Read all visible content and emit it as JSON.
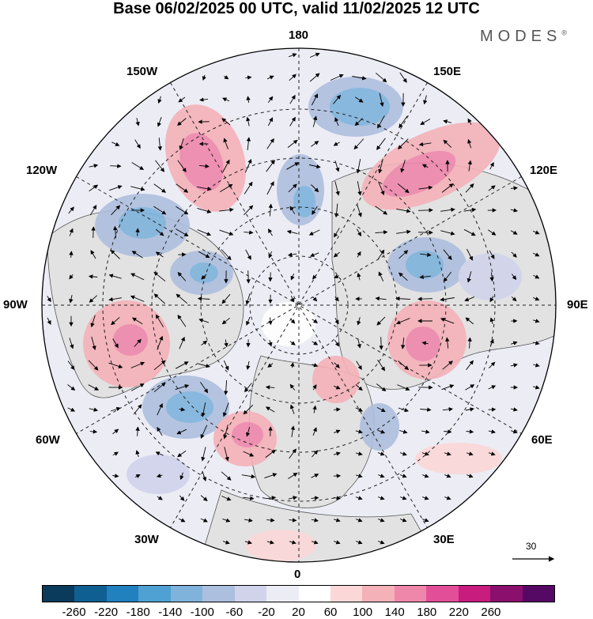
{
  "title": "Base 06/02/2025 00 UTC, valid 11/02/2025 12 UTC",
  "brand": "MODES",
  "brand_mark": "®",
  "longitude_labels": [
    "180",
    "150E",
    "120E",
    "90E",
    "60E",
    "30E",
    "0",
    "30W",
    "60W",
    "90W",
    "120W",
    "150W"
  ],
  "wind_reference": "30",
  "colorbar": {
    "colors": [
      "#0a3a5c",
      "#105f92",
      "#2180be",
      "#4ea1d2",
      "#7fb3dc",
      "#adbfde",
      "#d1d3eb",
      "#ececf5",
      "#ffffff",
      "#fbd7d7",
      "#f4b2b8",
      "#ef87ab",
      "#e24f98",
      "#c81c7f",
      "#8b0f6c",
      "#560865"
    ],
    "ticks": [
      "-260",
      "-220",
      "-180",
      "-140",
      "-100",
      "-60",
      "-20",
      "20",
      "60",
      "100",
      "140",
      "180",
      "220",
      "260"
    ]
  },
  "icons": {
    "wind_arrow": "arrow-icon"
  }
}
